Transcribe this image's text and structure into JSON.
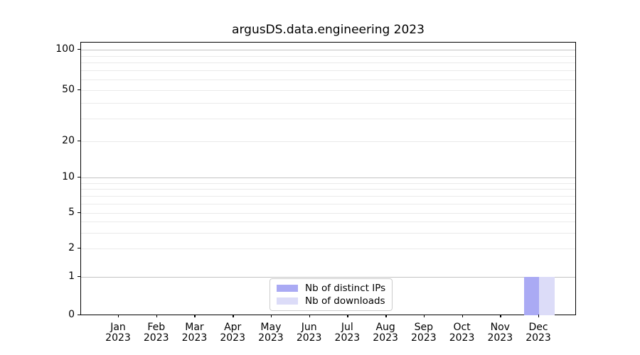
{
  "chart_data": {
    "type": "bar",
    "title": "argusDS.data.engineering 2023",
    "xlabel": "",
    "ylabel": "",
    "categories": [
      "Jan 2023",
      "Feb 2023",
      "Mar 2023",
      "Apr 2023",
      "May 2023",
      "Jun 2023",
      "Jul 2023",
      "Aug 2023",
      "Sep 2023",
      "Oct 2023",
      "Nov 2023",
      "Dec 2023"
    ],
    "series": [
      {
        "name": "Nb of distinct IPs",
        "color": "#aaaaf4",
        "values": [
          0,
          0,
          0,
          0,
          0,
          0,
          0,
          0,
          0,
          0,
          0,
          1
        ]
      },
      {
        "name": "Nb of downloads",
        "color": "#dcdcf8",
        "values": [
          0,
          0,
          0,
          0,
          0,
          0,
          0,
          0,
          0,
          0,
          0,
          1
        ]
      }
    ],
    "yscale": "symlog",
    "ylim": [
      0,
      110
    ],
    "y_ticks": [
      0,
      1,
      2,
      5,
      10,
      20,
      50,
      100
    ],
    "y_major_gridline_values": [
      1,
      10,
      100
    ],
    "y_minor_gridline_values": [
      3,
      4,
      6,
      7,
      8,
      9,
      30,
      40,
      60,
      70,
      80,
      90
    ],
    "grid": true,
    "legend": {
      "position": "lower center",
      "entries": [
        {
          "label": "Nb of distinct IPs",
          "color": "#aaaaf4"
        },
        {
          "label": "Nb of downloads",
          "color": "#dcdcf8"
        }
      ]
    }
  }
}
